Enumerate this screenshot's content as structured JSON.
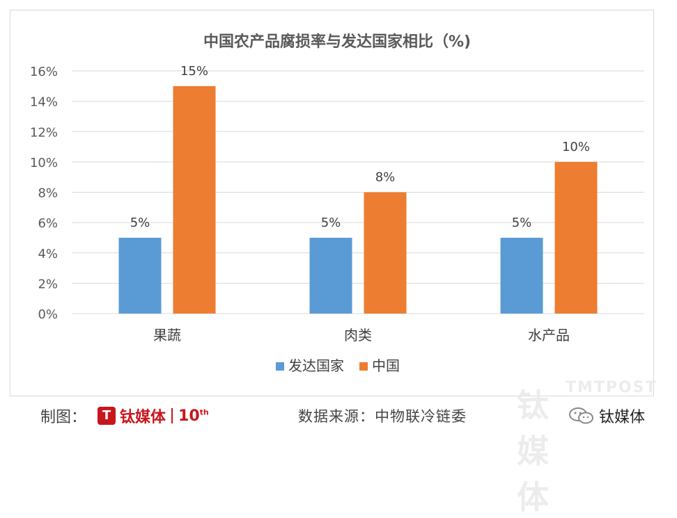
{
  "chart_data": {
    "type": "bar",
    "title": "中国农产品腐损率与发达国家相比（%)",
    "categories": [
      "果蔬",
      "肉类",
      "水产品"
    ],
    "series": [
      {
        "name": "发达国家",
        "values": [
          5,
          5,
          5
        ],
        "color": "#5b9bd5"
      },
      {
        "name": "中国",
        "values": [
          15,
          8,
          10
        ],
        "color": "#ed7d31"
      }
    ],
    "data_labels": [
      [
        "5%",
        "5%",
        "5%"
      ],
      [
        "15%",
        "8%",
        "10%"
      ]
    ],
    "y_ticks": [
      "0%",
      "2%",
      "4%",
      "6%",
      "8%",
      "10%",
      "12%",
      "14%",
      "16%"
    ],
    "ylim": [
      0,
      16
    ],
    "grid": true,
    "legend_position": "bottom"
  },
  "footer": {
    "credit_label": "制图：",
    "logo_text": "钛媒体",
    "logo_mark": "T",
    "logo_ten": "10",
    "logo_ten_sup": "th",
    "source": "数据来源：中物联冷链委",
    "wechat_account": "钛媒体"
  },
  "watermark": {
    "en": "TMTPOST",
    "cn": "钛媒体"
  }
}
